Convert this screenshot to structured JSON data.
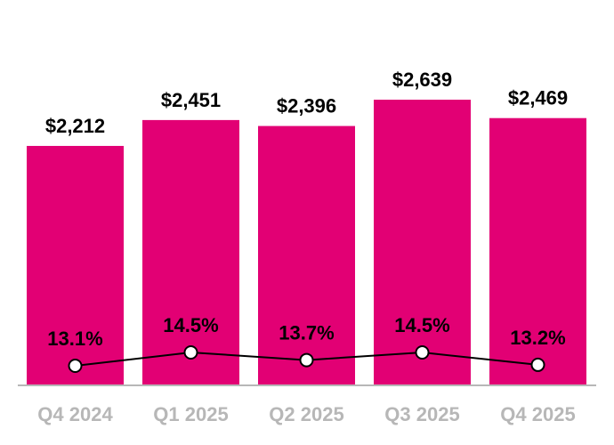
{
  "chart_data": {
    "type": "bar",
    "categories": [
      "Q4 2024",
      "Q1 2025",
      "Q2 2025",
      "Q3 2025",
      "Q4 2025"
    ],
    "series": [
      {
        "type": "bar",
        "values": [
          2212,
          2451,
          2396,
          2639,
          2469
        ],
        "labels": [
          "$2,212",
          "$2,451",
          "$2,396",
          "$2,639",
          "$2,469"
        ],
        "color": "#E20074"
      },
      {
        "type": "line",
        "values": [
          13.1,
          14.5,
          13.7,
          14.5,
          13.2
        ],
        "labels": [
          "13.1%",
          "14.5%",
          "13.7%",
          "14.5%",
          "13.2%"
        ],
        "color": "#000000",
        "marker": "circle",
        "marker_fill": "#ffffff"
      }
    ],
    "ylim": [
      0,
      3560
    ],
    "y2lim": [
      0,
      16
    ],
    "grid": false,
    "axis_color": "#b7b7b7",
    "tick_label_color": "#b7b7b7"
  }
}
